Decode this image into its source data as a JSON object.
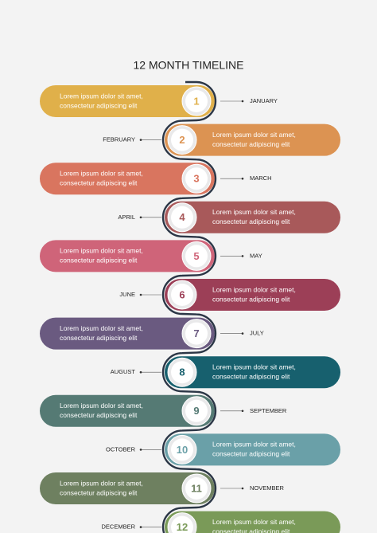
{
  "header": {
    "title": "12 MONTH TIMELINE"
  },
  "items": [
    {
      "number": "1",
      "month": "JANUARY",
      "lines": [
        "Lorem ipsum dolor sit amet,",
        "consectetur adipiscing elit"
      ],
      "color": "#e0b04a"
    },
    {
      "number": "2",
      "month": "FEBRUARY",
      "lines": [
        "Lorem ipsum dolor sit amet,",
        "consectetur adipiscing elit"
      ],
      "color": "#dc9352"
    },
    {
      "number": "3",
      "month": "MARCH",
      "lines": [
        "Lorem ipsum dolor sit amet,",
        "consectetur adipiscing elit"
      ],
      "color": "#d9755f"
    },
    {
      "number": "4",
      "month": "APRIL",
      "lines": [
        "Lorem ipsum dolor sit amet,",
        "consectetur adipiscing elit"
      ],
      "color": "#a8595a"
    },
    {
      "number": "5",
      "month": "MAY",
      "lines": [
        "Lorem ipsum dolor sit amet,",
        "consectetur adipiscing elit"
      ],
      "color": "#cf6479"
    },
    {
      "number": "6",
      "month": "JUNE",
      "lines": [
        "Lorem ipsum dolor sit amet,",
        "consectetur adipiscing elit"
      ],
      "color": "#9c3f57"
    },
    {
      "number": "7",
      "month": "JULY",
      "lines": [
        "Lorem ipsum dolor sit amet,",
        "consectetur adipiscing elit"
      ],
      "color": "#6a5a80"
    },
    {
      "number": "8",
      "month": "AUGUST",
      "lines": [
        "Lorem ipsum dolor sit amet,",
        "consectetur adipiscing elit"
      ],
      "color": "#17606e"
    },
    {
      "number": "9",
      "month": "SEPTEMBER",
      "lines": [
        "Lorem ipsum dolor sit amet,",
        "consectetur adipiscing elit"
      ],
      "color": "#557a74"
    },
    {
      "number": "10",
      "month": "OCTOBER",
      "lines": [
        "Lorem ipsum dolor sit amet,",
        "consectetur adipiscing elit"
      ],
      "color": "#6aa0a8"
    },
    {
      "number": "11",
      "month": "NOVEMBER",
      "lines": [
        "Lorem ipsum dolor sit amet,",
        "consectetur adipiscing elit"
      ],
      "color": "#6e8060"
    },
    {
      "number": "12",
      "month": "DECEMBER",
      "lines": [
        "Lorem ipsum dolor sit amet,",
        "consectetur adipiscing elit"
      ],
      "color": "#7a9a58"
    }
  ]
}
